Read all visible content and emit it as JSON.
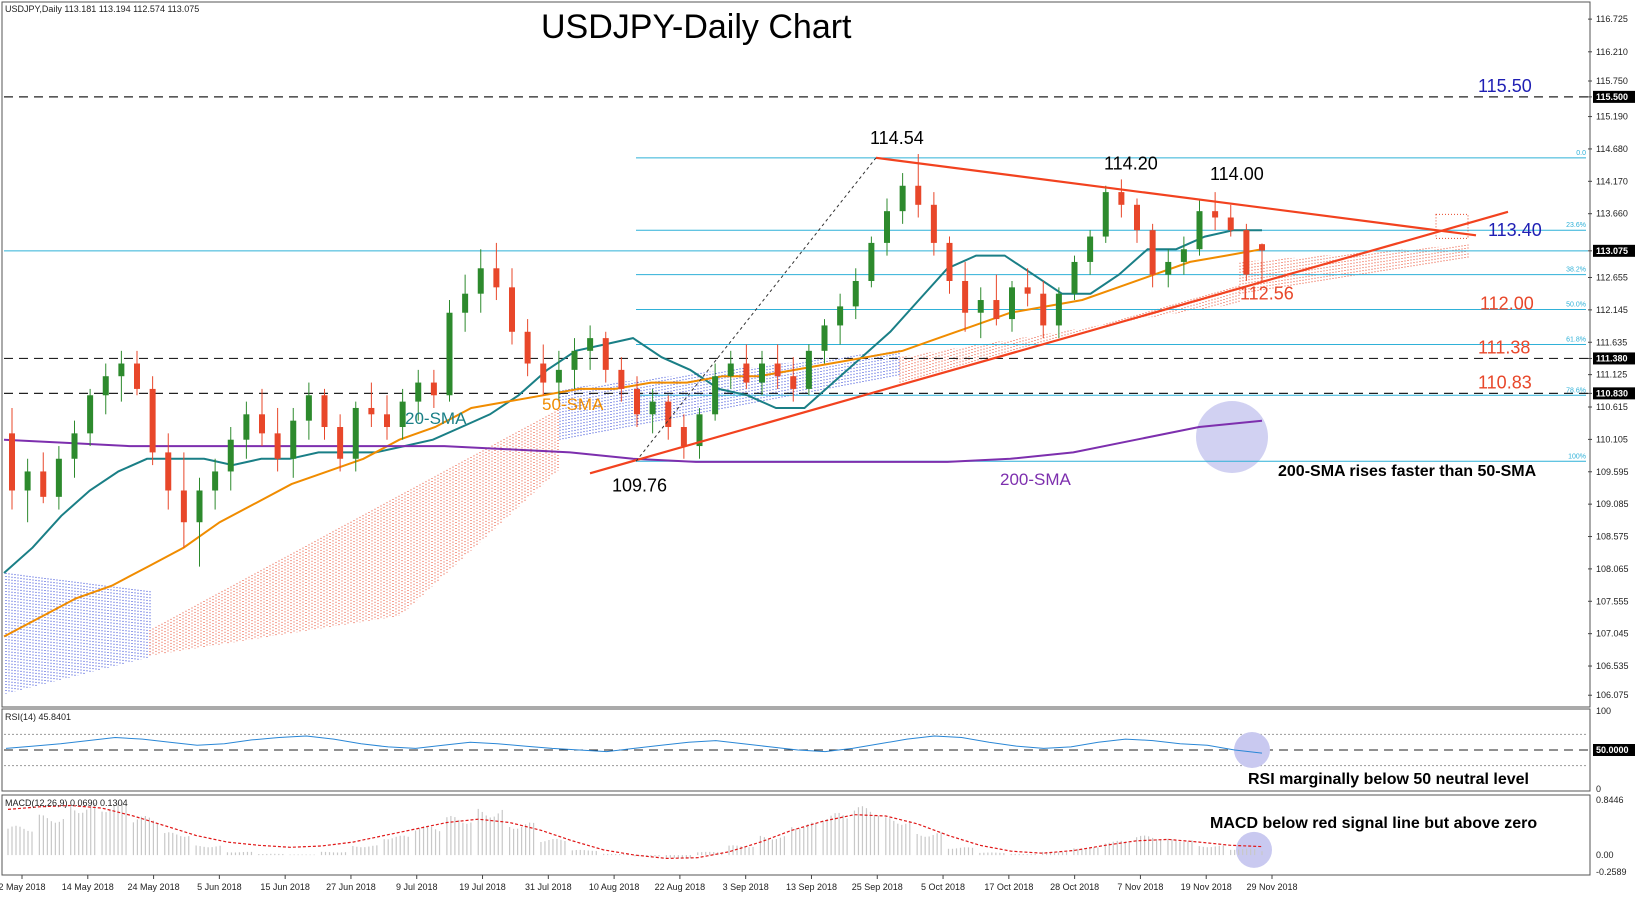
{
  "chart_data": {
    "type": "line",
    "symbol": "USDJPY",
    "timeframe": "Daily",
    "title": "USDJPY-Daily Chart",
    "header_info": "USDJPY,Daily  113.181 113.194 112.574 113.075",
    "price_axis_ticks": [
      "116.725",
      "116.210",
      "115.750",
      "115.500",
      "115.190",
      "114.680",
      "114.170",
      "113.660",
      "113.075",
      "112.655",
      "112.145",
      "111.635",
      "111.380",
      "111.125",
      "110.830",
      "110.615",
      "110.105",
      "109.595",
      "109.085",
      "108.575",
      "108.065",
      "107.555",
      "107.045",
      "106.535",
      "106.075"
    ],
    "price_axis": {
      "tick_values": [
        116.725,
        116.21,
        115.75,
        115.5,
        115.19,
        114.68,
        114.17,
        113.66,
        113.075,
        112.655,
        112.145,
        111.635,
        111.38,
        111.125,
        110.83,
        110.615,
        110.105,
        109.595,
        109.085,
        108.575,
        108.065,
        107.555,
        107.045,
        106.535,
        106.075
      ],
      "highlighted": [
        "115.500",
        "113.075",
        "111.380",
        "110.830"
      ]
    },
    "date_axis_labels": [
      "2 May 2018",
      "14 May 2018",
      "24 May 2018",
      "5 Jun 2018",
      "15 Jun 2018",
      "27 Jun 2018",
      "9 Jul 2018",
      "19 Jul 2018",
      "31 Jul 2018",
      "10 Aug 2018",
      "22 Aug 2018",
      "3 Sep 2018",
      "13 Sep 2018",
      "25 Sep 2018",
      "5 Oct 2018",
      "17 Oct 2018",
      "28 Oct 2018",
      "7 Nov 2018",
      "19 Nov 2018",
      "29 Nov 2018"
    ],
    "ylim": [
      106.0,
      116.9
    ],
    "horizontal_levels": [
      {
        "value": 115.5,
        "label": "115.50",
        "style": "dashed",
        "color": "#1f1fb4"
      },
      {
        "value": 111.38,
        "label": "111.38",
        "style": "dashed",
        "color": "#e8472a"
      },
      {
        "value": 110.83,
        "label": "110.83",
        "style": "dashed",
        "color": "#e8472a"
      }
    ],
    "fibonacci": [
      {
        "label": "0.0",
        "value": 114.54
      },
      {
        "label": "23.6%",
        "value": 113.4
      },
      {
        "label": "38.2%",
        "value": 112.7
      },
      {
        "label": "50.0%",
        "value": 112.15
      },
      {
        "label": "61.8%",
        "value": 111.6
      },
      {
        "label": "78.6%",
        "value": 110.8
      },
      {
        "label": "100%",
        "value": 109.76
      }
    ],
    "price_annotations": [
      "114.54",
      "114.20",
      "114.00",
      "109.76",
      "113.40",
      "112.56",
      "112.00"
    ],
    "series": [
      {
        "name": "20-SMA",
        "color": "#1a7f86",
        "values": [
          108.0,
          108.4,
          108.9,
          109.3,
          109.6,
          109.8,
          109.8,
          109.8,
          109.7,
          109.8,
          109.8,
          109.9,
          109.9,
          109.9,
          110.0,
          110.1,
          110.3,
          110.5,
          110.8,
          111.2,
          111.5,
          111.6,
          111.7,
          111.4,
          111.2,
          110.9,
          110.8,
          110.6,
          110.6,
          111.0,
          111.4,
          111.8,
          112.3,
          112.8,
          113.0,
          113.0,
          112.7,
          112.4,
          112.4,
          112.7,
          113.1,
          113.1,
          113.3,
          113.4,
          113.4
        ]
      },
      {
        "name": "50-SMA",
        "color": "#f08c00",
        "values": [
          107.0,
          107.3,
          107.6,
          107.8,
          108.1,
          108.4,
          108.8,
          109.1,
          109.4,
          109.6,
          109.8,
          110.1,
          110.3,
          110.6,
          110.7,
          110.8,
          110.9,
          110.9,
          111.0,
          111.0,
          111.1,
          111.1,
          111.2,
          111.3,
          111.4,
          111.5,
          111.7,
          111.9,
          112.1,
          112.2,
          112.3,
          112.5,
          112.7,
          112.9,
          113.0,
          113.1
        ]
      },
      {
        "name": "200-SMA",
        "color": "#7d2fae",
        "values": [
          110.1,
          110.05,
          110.0,
          110.0,
          110.0,
          110.0,
          110.0,
          110.0,
          109.95,
          109.9,
          109.8,
          109.75,
          109.75,
          109.75,
          109.75,
          109.75,
          109.8,
          109.9,
          110.1,
          110.3,
          110.4
        ]
      }
    ],
    "trendlines": [
      {
        "name": "support",
        "color": "#f2421f",
        "from": {
          "date": "21 Aug 2018",
          "value": 109.76
        },
        "to": {
          "date": "29 Nov 2018",
          "value": 112.56
        }
      },
      {
        "name": "resistance",
        "color": "#f2421f",
        "from": {
          "date": "1 Oct 2018",
          "value": 114.54
        },
        "to": {
          "date": "Dec 2018",
          "value": 113.4
        }
      }
    ],
    "candles": [
      {
        "o": 110.2,
        "h": 110.6,
        "l": 109.0,
        "c": 109.3
      },
      {
        "o": 109.3,
        "h": 109.8,
        "l": 108.8,
        "c": 109.6
      },
      {
        "o": 109.6,
        "h": 109.9,
        "l": 109.1,
        "c": 109.2
      },
      {
        "o": 109.2,
        "h": 110.0,
        "l": 109.0,
        "c": 109.8
      },
      {
        "o": 109.8,
        "h": 110.4,
        "l": 109.5,
        "c": 110.2
      },
      {
        "o": 110.2,
        "h": 110.9,
        "l": 110.0,
        "c": 110.8
      },
      {
        "o": 110.8,
        "h": 111.3,
        "l": 110.5,
        "c": 111.1
      },
      {
        "o": 111.1,
        "h": 111.5,
        "l": 110.7,
        "c": 111.3
      },
      {
        "o": 111.3,
        "h": 111.5,
        "l": 110.8,
        "c": 110.9
      },
      {
        "o": 110.9,
        "h": 111.1,
        "l": 109.7,
        "c": 109.9
      },
      {
        "o": 109.9,
        "h": 110.2,
        "l": 109.0,
        "c": 109.3
      },
      {
        "o": 109.3,
        "h": 109.9,
        "l": 108.4,
        "c": 108.8
      },
      {
        "o": 108.8,
        "h": 109.5,
        "l": 108.1,
        "c": 109.3
      },
      {
        "o": 109.3,
        "h": 109.8,
        "l": 109.0,
        "c": 109.6
      },
      {
        "o": 109.6,
        "h": 110.3,
        "l": 109.3,
        "c": 110.1
      },
      {
        "o": 110.1,
        "h": 110.7,
        "l": 109.8,
        "c": 110.5
      },
      {
        "o": 110.5,
        "h": 110.9,
        "l": 110.0,
        "c": 110.2
      },
      {
        "o": 110.2,
        "h": 110.6,
        "l": 109.6,
        "c": 109.8
      },
      {
        "o": 109.8,
        "h": 110.6,
        "l": 109.5,
        "c": 110.4
      },
      {
        "o": 110.4,
        "h": 111.0,
        "l": 110.1,
        "c": 110.8
      },
      {
        "o": 110.8,
        "h": 110.9,
        "l": 110.1,
        "c": 110.3
      },
      {
        "o": 110.3,
        "h": 110.5,
        "l": 109.6,
        "c": 109.8
      },
      {
        "o": 109.8,
        "h": 110.7,
        "l": 109.6,
        "c": 110.6
      },
      {
        "o": 110.6,
        "h": 111.0,
        "l": 110.3,
        "c": 110.5
      },
      {
        "o": 110.5,
        "h": 110.8,
        "l": 110.1,
        "c": 110.3
      },
      {
        "o": 110.3,
        "h": 110.9,
        "l": 110.1,
        "c": 110.7
      },
      {
        "o": 110.7,
        "h": 111.2,
        "l": 110.4,
        "c": 111.0
      },
      {
        "o": 111.0,
        "h": 111.2,
        "l": 110.6,
        "c": 110.8
      },
      {
        "o": 110.8,
        "h": 112.3,
        "l": 110.7,
        "c": 112.1
      },
      {
        "o": 112.1,
        "h": 112.7,
        "l": 111.8,
        "c": 112.4
      },
      {
        "o": 112.4,
        "h": 113.1,
        "l": 112.1,
        "c": 112.8
      },
      {
        "o": 112.8,
        "h": 113.2,
        "l": 112.3,
        "c": 112.5
      },
      {
        "o": 112.5,
        "h": 112.8,
        "l": 111.6,
        "c": 111.8
      },
      {
        "o": 111.8,
        "h": 112.0,
        "l": 111.1,
        "c": 111.3
      },
      {
        "o": 111.3,
        "h": 111.6,
        "l": 110.8,
        "c": 111.0
      },
      {
        "o": 111.0,
        "h": 111.5,
        "l": 110.7,
        "c": 111.2
      },
      {
        "o": 111.2,
        "h": 111.7,
        "l": 110.9,
        "c": 111.5
      },
      {
        "o": 111.5,
        "h": 111.9,
        "l": 111.2,
        "c": 111.7
      },
      {
        "o": 111.7,
        "h": 111.8,
        "l": 111.0,
        "c": 111.2
      },
      {
        "o": 111.2,
        "h": 111.4,
        "l": 110.7,
        "c": 110.9
      },
      {
        "o": 110.9,
        "h": 111.1,
        "l": 110.3,
        "c": 110.5
      },
      {
        "o": 110.5,
        "h": 110.9,
        "l": 110.2,
        "c": 110.7
      },
      {
        "o": 110.7,
        "h": 110.8,
        "l": 110.1,
        "c": 110.3
      },
      {
        "o": 110.3,
        "h": 110.5,
        "l": 109.8,
        "c": 110.0
      },
      {
        "o": 110.0,
        "h": 110.6,
        "l": 109.8,
        "c": 110.5
      },
      {
        "o": 110.5,
        "h": 111.3,
        "l": 110.4,
        "c": 111.1
      },
      {
        "o": 111.1,
        "h": 111.5,
        "l": 110.9,
        "c": 111.3
      },
      {
        "o": 111.3,
        "h": 111.6,
        "l": 110.9,
        "c": 111.0
      },
      {
        "o": 111.0,
        "h": 111.5,
        "l": 110.8,
        "c": 111.3
      },
      {
        "o": 111.3,
        "h": 111.6,
        "l": 110.9,
        "c": 111.1
      },
      {
        "o": 111.1,
        "h": 111.4,
        "l": 110.7,
        "c": 110.9
      },
      {
        "o": 110.9,
        "h": 111.6,
        "l": 110.8,
        "c": 111.5
      },
      {
        "o": 111.5,
        "h": 112.0,
        "l": 111.3,
        "c": 111.9
      },
      {
        "o": 111.9,
        "h": 112.4,
        "l": 111.6,
        "c": 112.2
      },
      {
        "o": 112.2,
        "h": 112.8,
        "l": 112.0,
        "c": 112.6
      },
      {
        "o": 112.6,
        "h": 113.3,
        "l": 112.5,
        "c": 113.2
      },
      {
        "o": 113.2,
        "h": 113.9,
        "l": 113.0,
        "c": 113.7
      },
      {
        "o": 113.7,
        "h": 114.3,
        "l": 113.5,
        "c": 114.1
      },
      {
        "o": 114.1,
        "h": 114.6,
        "l": 113.6,
        "c": 113.8
      },
      {
        "o": 113.8,
        "h": 114.0,
        "l": 113.0,
        "c": 113.2
      },
      {
        "o": 113.2,
        "h": 113.3,
        "l": 112.4,
        "c": 112.6
      },
      {
        "o": 112.6,
        "h": 112.9,
        "l": 111.8,
        "c": 112.1
      },
      {
        "o": 112.1,
        "h": 112.5,
        "l": 111.7,
        "c": 112.3
      },
      {
        "o": 112.3,
        "h": 112.7,
        "l": 111.9,
        "c": 112.0
      },
      {
        "o": 112.0,
        "h": 112.6,
        "l": 111.8,
        "c": 112.5
      },
      {
        "o": 112.5,
        "h": 112.8,
        "l": 112.2,
        "c": 112.4
      },
      {
        "o": 112.4,
        "h": 112.6,
        "l": 111.7,
        "c": 111.9
      },
      {
        "o": 111.9,
        "h": 112.5,
        "l": 111.7,
        "c": 112.4
      },
      {
        "o": 112.4,
        "h": 113.0,
        "l": 112.3,
        "c": 112.9
      },
      {
        "o": 112.9,
        "h": 113.4,
        "l": 112.7,
        "c": 113.3
      },
      {
        "o": 113.3,
        "h": 114.1,
        "l": 113.2,
        "c": 114.0
      },
      {
        "o": 114.0,
        "h": 114.2,
        "l": 113.6,
        "c": 113.8
      },
      {
        "o": 113.8,
        "h": 113.9,
        "l": 113.2,
        "c": 113.4
      },
      {
        "o": 113.4,
        "h": 113.5,
        "l": 112.5,
        "c": 112.7
      },
      {
        "o": 112.7,
        "h": 113.1,
        "l": 112.5,
        "c": 112.9
      },
      {
        "o": 112.9,
        "h": 113.3,
        "l": 112.7,
        "c": 113.1
      },
      {
        "o": 113.1,
        "h": 113.9,
        "l": 113.0,
        "c": 113.7
      },
      {
        "o": 113.7,
        "h": 114.0,
        "l": 113.4,
        "c": 113.6
      },
      {
        "o": 113.6,
        "h": 113.8,
        "l": 113.3,
        "c": 113.4
      },
      {
        "o": 113.4,
        "h": 113.5,
        "l": 112.6,
        "c": 112.7
      },
      {
        "o": 113.18,
        "h": 113.19,
        "l": 112.57,
        "c": 113.08
      }
    ],
    "rsi": {
      "label": "RSI(14) 45.8401",
      "ticks": [
        "100",
        "50.0000",
        "0"
      ],
      "ylim": [
        0,
        100
      ],
      "levels": [
        70,
        50,
        30
      ],
      "values": [
        52,
        55,
        58,
        62,
        66,
        64,
        60,
        56,
        58,
        63,
        66,
        68,
        64,
        58,
        54,
        52,
        56,
        60,
        58,
        55,
        52,
        50,
        48,
        52,
        56,
        60,
        62,
        58,
        54,
        50,
        48,
        52,
        58,
        64,
        68,
        66,
        60,
        55,
        52,
        54,
        60,
        64,
        62,
        58,
        56,
        50,
        46
      ]
    },
    "macd": {
      "label": "MACD(12,26,9) 0.0690 0.1304",
      "ticks": [
        "0.8446",
        "0.00",
        "-0.2589"
      ],
      "ylim": [
        -0.2589,
        0.8446
      ],
      "histogram": [
        0.45,
        0.62,
        0.8,
        0.82,
        0.6,
        0.35,
        0.15,
        0.05,
        0.02,
        0.01,
        0.05,
        0.15,
        0.3,
        0.45,
        0.6,
        0.72,
        0.5,
        0.25,
        0.08,
        0.02,
        -0.02,
        -0.05,
        0.05,
        0.15,
        0.3,
        0.5,
        0.65,
        0.75,
        0.58,
        0.35,
        0.12,
        0.04,
        0.02,
        0.05,
        0.12,
        0.22,
        0.3,
        0.25,
        0.15,
        0.1,
        0.07
      ],
      "signal": [
        0.7,
        0.74,
        0.76,
        0.72,
        0.6,
        0.45,
        0.3,
        0.2,
        0.15,
        0.12,
        0.14,
        0.2,
        0.3,
        0.4,
        0.5,
        0.55,
        0.5,
        0.38,
        0.22,
        0.08,
        0.0,
        -0.05,
        -0.04,
        0.05,
        0.2,
        0.38,
        0.52,
        0.62,
        0.6,
        0.48,
        0.3,
        0.15,
        0.06,
        0.03,
        0.07,
        0.15,
        0.22,
        0.24,
        0.2,
        0.15,
        0.13
      ]
    },
    "annotations": {
      "sma_20": "20-SMA",
      "sma_50": "50-SMA",
      "sma_200": "200-SMA",
      "note_sma": "200-SMA rises faster than 50-SMA",
      "note_rsi": "RSI marginally below 50 neutral level",
      "note_macd": "MACD below red signal line but above zero"
    },
    "colors": {
      "bull": "#2d8a2d",
      "bear": "#e8472a",
      "ichimoku_bull": "#2b3fd6",
      "ichimoku_bear": "#e8472a",
      "fib": "#2fb1d8",
      "trend": "#f2421f",
      "level_blue": "#1f1fb4",
      "level_red": "#e8472a",
      "sma20": "#1a7f86",
      "sma50": "#f08c00",
      "sma200": "#7d2fae",
      "rsi": "#2a87d6",
      "macd_signal": "#e01818",
      "macd_hist": "#c8c8c8",
      "highlight": "#c9c9f0"
    }
  }
}
